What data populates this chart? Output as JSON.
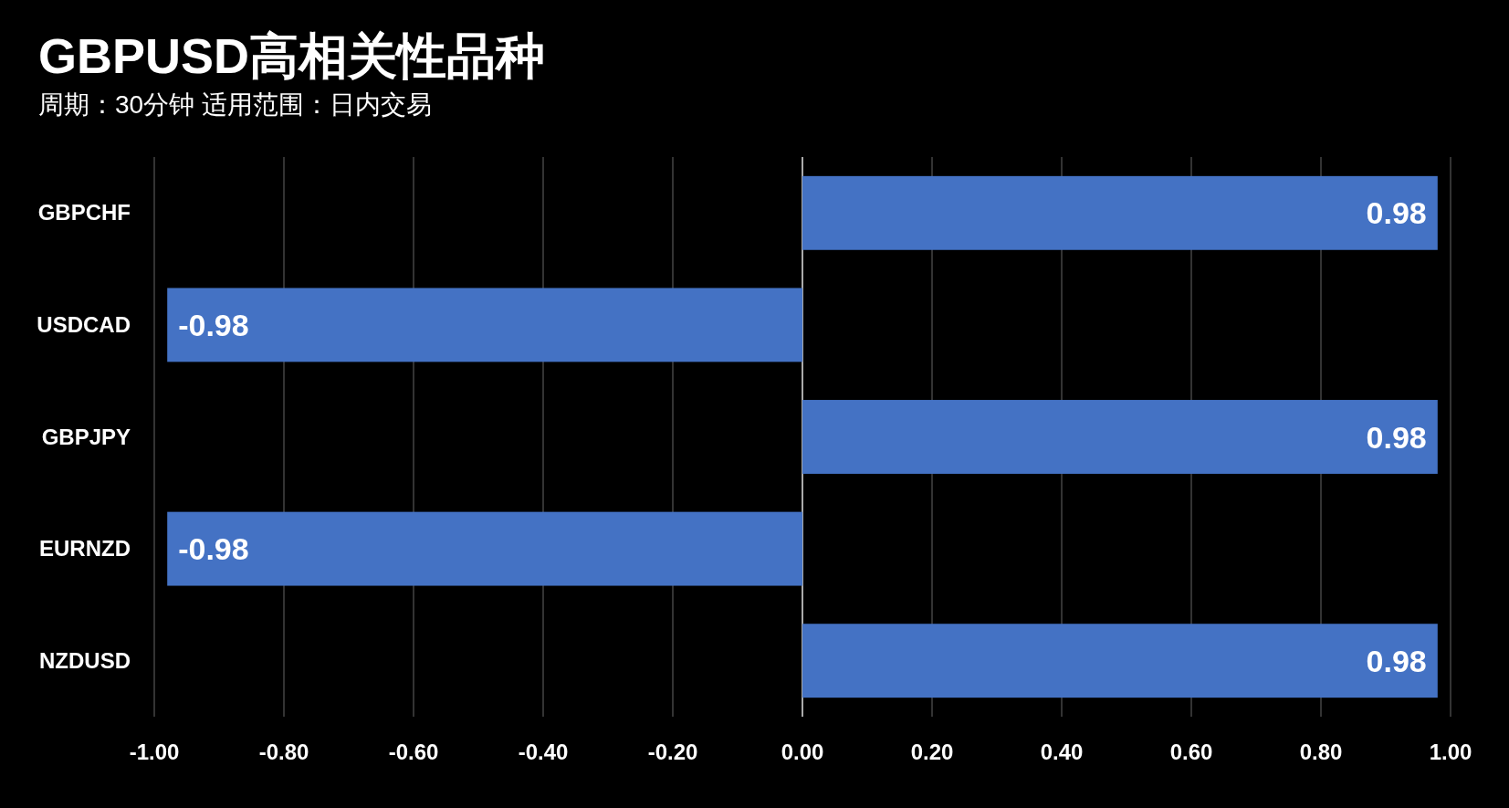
{
  "chart_data": {
    "type": "bar",
    "orientation": "horizontal",
    "title": "GBPUSD高相关性品种",
    "subtitle": "周期：30分钟  适用范围：日内交易",
    "categories": [
      "GBPCHF",
      "USDCAD",
      "GBPJPY",
      "EURNZD",
      "NZDUSD"
    ],
    "values": [
      0.98,
      -0.98,
      0.98,
      -0.98,
      0.98
    ],
    "color": "#4472c4",
    "xlim": [
      -1,
      1
    ],
    "xticks": [
      {
        "value": -1,
        "label": "-1.00"
      },
      {
        "value": -0.8,
        "label": "-0.80"
      },
      {
        "value": -0.6,
        "label": "-0.60"
      },
      {
        "value": -0.4,
        "label": "-0.40"
      },
      {
        "value": -0.2,
        "label": "-0.20"
      },
      {
        "value": 0,
        "label": "0.00"
      },
      {
        "value": 0.2,
        "label": "0.20"
      },
      {
        "value": 0.4,
        "label": "0.40"
      },
      {
        "value": 0.6,
        "label": "0.60"
      },
      {
        "value": 0.8,
        "label": "0.80"
      },
      {
        "value": 1,
        "label": "1.00"
      }
    ],
    "grid": "x",
    "data_labels": true
  }
}
